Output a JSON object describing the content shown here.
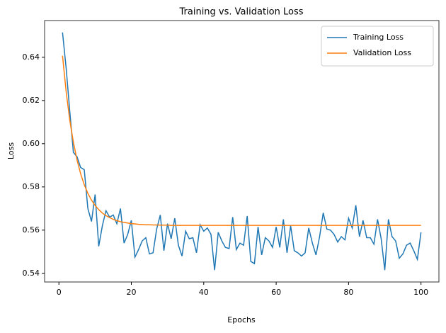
{
  "chart_data": {
    "type": "line",
    "title": "Training vs. Validation Loss",
    "x_label": "Epochs",
    "y_label": "Loss",
    "x": [
      1,
      2,
      3,
      4,
      5,
      6,
      7,
      8,
      9,
      10,
      11,
      12,
      13,
      14,
      15,
      16,
      17,
      18,
      19,
      20,
      21,
      22,
      23,
      24,
      25,
      26,
      27,
      28,
      29,
      30,
      31,
      32,
      33,
      34,
      35,
      36,
      37,
      38,
      39,
      40,
      41,
      42,
      43,
      44,
      45,
      46,
      47,
      48,
      49,
      50,
      51,
      52,
      53,
      54,
      55,
      56,
      57,
      58,
      59,
      60,
      61,
      62,
      63,
      64,
      65,
      66,
      67,
      68,
      69,
      70,
      71,
      72,
      73,
      74,
      75,
      76,
      77,
      78,
      79,
      80,
      81,
      82,
      83,
      84,
      85,
      86,
      87,
      88,
      89,
      90,
      91,
      92,
      93,
      94,
      95,
      96,
      97,
      98,
      99,
      100
    ],
    "series": [
      {
        "name": "Training Loss",
        "color": "#1f77b4",
        "values": [
          0.6515,
          0.635,
          0.615,
          0.596,
          0.594,
          0.589,
          0.588,
          0.57,
          0.564,
          0.5765,
          0.5525,
          0.562,
          0.569,
          0.566,
          0.567,
          0.563,
          0.57,
          0.554,
          0.558,
          0.5645,
          0.5475,
          0.551,
          0.555,
          0.5565,
          0.549,
          0.5495,
          0.5605,
          0.567,
          0.5505,
          0.563,
          0.556,
          0.5655,
          0.553,
          0.548,
          0.5595,
          0.556,
          0.5565,
          0.5495,
          0.5625,
          0.5595,
          0.561,
          0.558,
          0.5415,
          0.559,
          0.555,
          0.552,
          0.5515,
          0.566,
          0.551,
          0.554,
          0.553,
          0.5665,
          0.5455,
          0.5445,
          0.5615,
          0.5485,
          0.5565,
          0.555,
          0.552,
          0.5615,
          0.552,
          0.565,
          0.5495,
          0.562,
          0.5505,
          0.5495,
          0.548,
          0.5495,
          0.561,
          0.554,
          0.5485,
          0.557,
          0.568,
          0.5605,
          0.56,
          0.558,
          0.5545,
          0.557,
          0.5555,
          0.5655,
          0.561,
          0.5715,
          0.557,
          0.5645,
          0.5565,
          0.5565,
          0.5535,
          0.565,
          0.556,
          0.5415,
          0.565,
          0.557,
          0.555,
          0.547,
          0.549,
          0.553,
          0.554,
          0.5505,
          0.5465,
          0.559
        ]
      },
      {
        "name": "Validation Loss",
        "color": "#ff7f0e",
        "values": [
          0.6407,
          0.6241,
          0.6109,
          0.6007,
          0.5925,
          0.5861,
          0.581,
          0.577,
          0.5739,
          0.5714,
          0.5695,
          0.5679,
          0.5667,
          0.5658,
          0.565,
          0.5644,
          0.5639,
          0.5636,
          0.5633,
          0.563,
          0.5629,
          0.5627,
          0.5626,
          0.5625,
          0.5625,
          0.5624,
          0.5624,
          0.5623,
          0.5623,
          0.5623,
          0.5622,
          0.5622,
          0.5622,
          0.5622,
          0.5622,
          0.5622,
          0.5622,
          0.5622,
          0.5622,
          0.5622,
          0.5622,
          0.5622,
          0.5622,
          0.5622,
          0.5622,
          0.5622,
          0.5622,
          0.5622,
          0.5622,
          0.5622,
          0.5622,
          0.5622,
          0.5622,
          0.5622,
          0.5622,
          0.5622,
          0.5622,
          0.5622,
          0.5622,
          0.5622,
          0.5622,
          0.5622,
          0.5622,
          0.5622,
          0.5622,
          0.5622,
          0.5622,
          0.5622,
          0.5622,
          0.5622,
          0.5622,
          0.5622,
          0.5622,
          0.5622,
          0.5622,
          0.5622,
          0.5622,
          0.5622,
          0.5622,
          0.5622,
          0.5622,
          0.5622,
          0.5622,
          0.5622,
          0.5622,
          0.5622,
          0.5622,
          0.5622,
          0.5622,
          0.5622,
          0.5622,
          0.5622,
          0.5622,
          0.5622,
          0.5622,
          0.5622,
          0.5622,
          0.5622,
          0.5622,
          0.5622
        ]
      }
    ],
    "xlim": [
      -3.95,
      104.95
    ],
    "xticks": [
      0,
      20,
      40,
      60,
      80,
      100
    ],
    "ylim": [
      0.536,
      0.657
    ],
    "yticks": [
      {
        "value": 0.54,
        "label": "0.54"
      },
      {
        "value": 0.56,
        "label": "0.56"
      },
      {
        "value": 0.58,
        "label": "0.58"
      },
      {
        "value": 0.6,
        "label": "0.60"
      },
      {
        "value": 0.62,
        "label": "0.62"
      },
      {
        "value": 0.64,
        "label": "0.64"
      }
    ],
    "grid": false,
    "legend": "upper right"
  }
}
